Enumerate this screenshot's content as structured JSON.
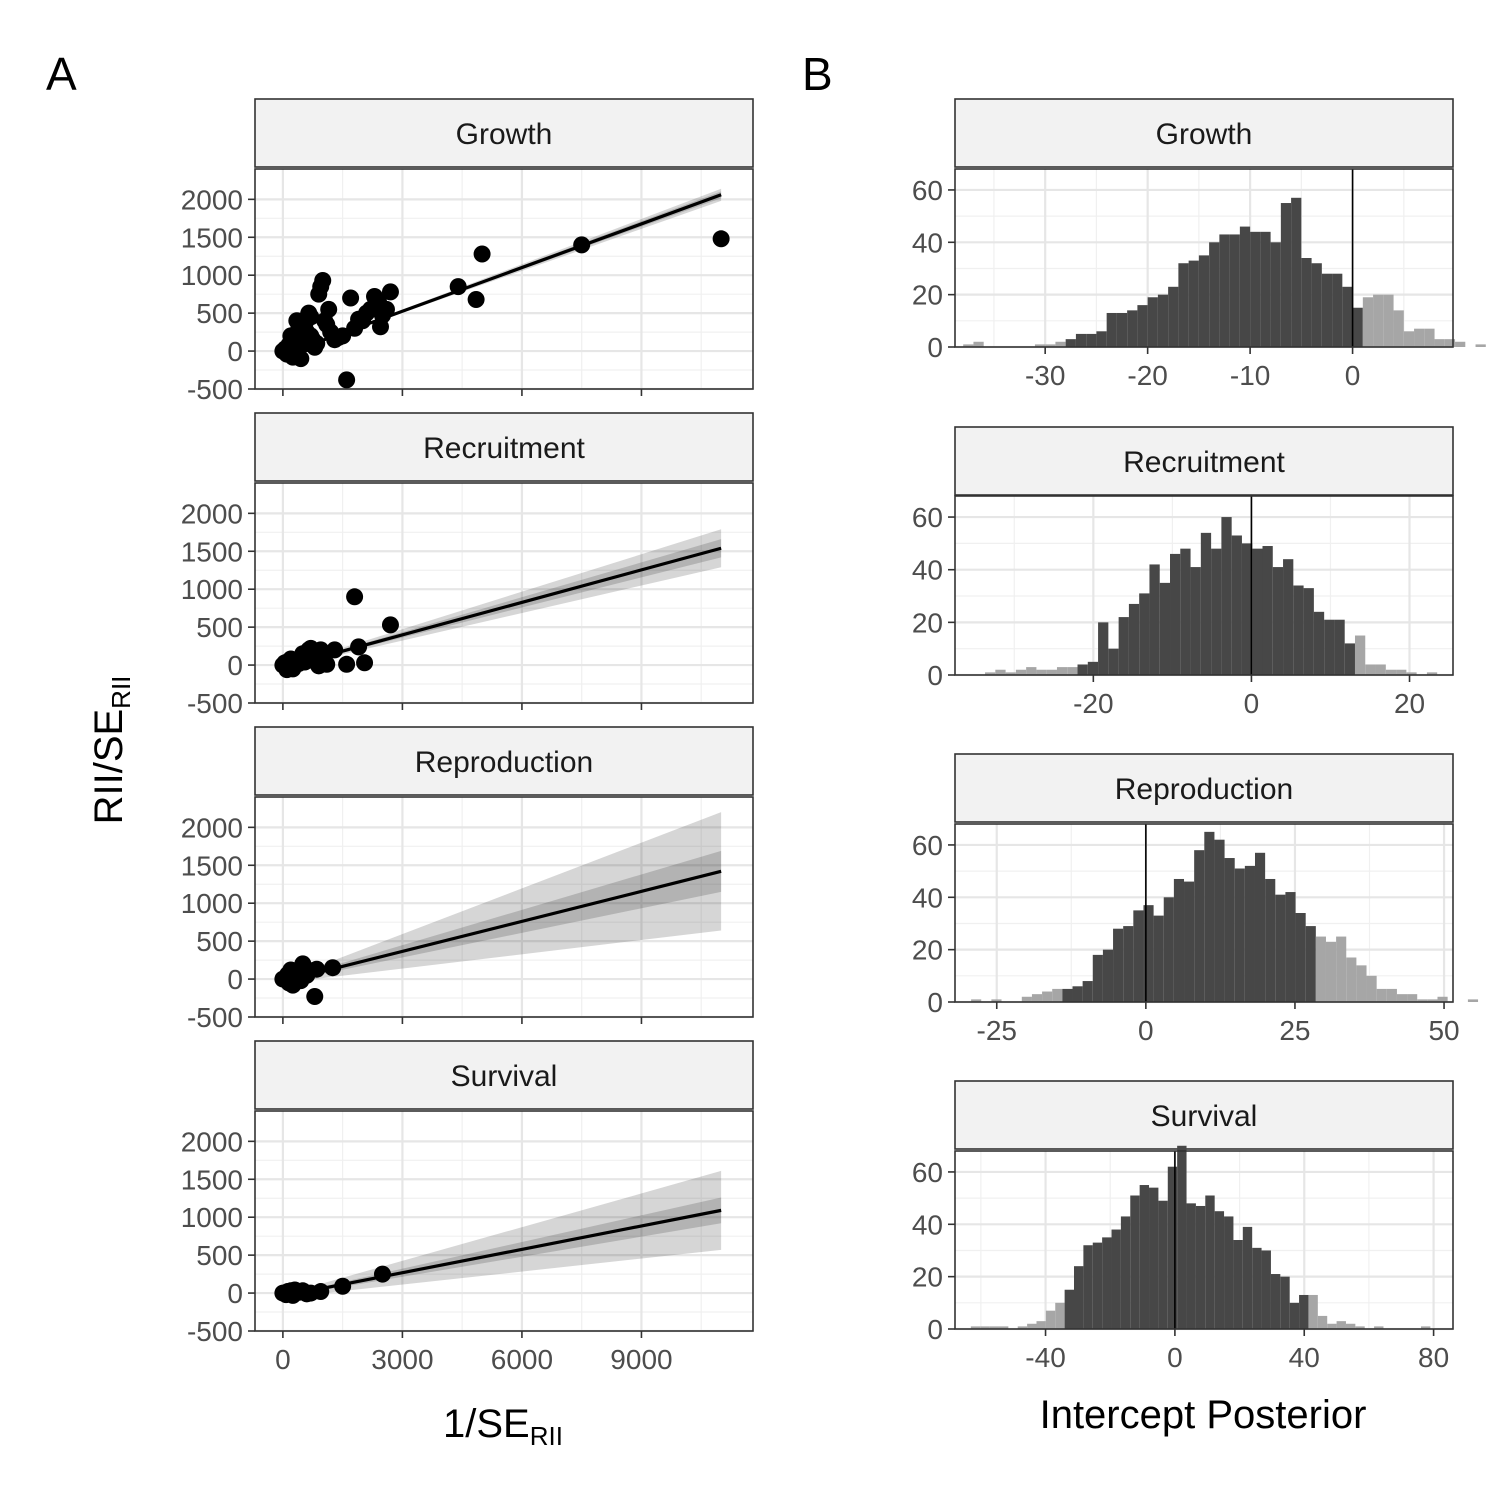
{
  "panels": {
    "a": "A",
    "b": "B"
  },
  "chart_data": [
    {
      "type": "scatter",
      "panel": "A",
      "xlabel": "1/SE",
      "xlabel_sub": "RII",
      "ylabel": "RII/SE",
      "ylabel_sub": "RII",
      "xlim": [
        -700,
        11800
      ],
      "ylim": [
        -500,
        2400
      ],
      "xticks": [
        0,
        3000,
        6000,
        9000
      ],
      "xtick_labels": [
        "0",
        "3000",
        "6000",
        "9000"
      ],
      "yticks": [
        -500,
        0,
        500,
        1000,
        1500,
        2000
      ],
      "ytick_labels": [
        "-500",
        "0",
        "500",
        "1000",
        "1500",
        "2000"
      ],
      "grid": true,
      "facets": [
        {
          "strip": "Growth",
          "fit": {
            "x0": 0,
            "x1": 11000,
            "y0": -50,
            "y1": 2060,
            "inner": [
              0,
              45
            ],
            "outer": [
              0,
              80
            ]
          },
          "points": [
            [
              0,
              0
            ],
            [
              60,
              30
            ],
            [
              100,
              -40
            ],
            [
              150,
              80
            ],
            [
              200,
              120
            ],
            [
              250,
              -80
            ],
            [
              300,
              200
            ],
            [
              350,
              150
            ],
            [
              400,
              300
            ],
            [
              450,
              100
            ],
            [
              500,
              400
            ],
            [
              550,
              350
            ],
            [
              600,
              250
            ],
            [
              650,
              500
            ],
            [
              700,
              200
            ],
            [
              750,
              150
            ],
            [
              800,
              50
            ],
            [
              850,
              100
            ],
            [
              900,
              750
            ],
            [
              950,
              850
            ],
            [
              1000,
              930
            ],
            [
              1050,
              400
            ],
            [
              1100,
              350
            ],
            [
              1150,
              550
            ],
            [
              1200,
              250
            ],
            [
              1300,
              150
            ],
            [
              1400,
              180
            ],
            [
              1500,
              200
            ],
            [
              1600,
              -380
            ],
            [
              1700,
              700
            ],
            [
              1800,
              300
            ],
            [
              1900,
              420
            ],
            [
              2000,
              400
            ],
            [
              2100,
              500
            ],
            [
              2200,
              550
            ],
            [
              2300,
              720
            ],
            [
              2400,
              650
            ],
            [
              2450,
              320
            ],
            [
              2500,
              470
            ],
            [
              2600,
              550
            ],
            [
              2700,
              780
            ],
            [
              4400,
              850
            ],
            [
              4850,
              680
            ],
            [
              5000,
              1280
            ],
            [
              7500,
              1400
            ],
            [
              11000,
              1480
            ],
            [
              200,
              200
            ],
            [
              350,
              400
            ],
            [
              300,
              -50
            ],
            [
              450,
              -100
            ],
            [
              600,
              100
            ],
            [
              700,
              450
            ]
          ]
        },
        {
          "strip": "Recruitment",
          "fit": {
            "x0": 0,
            "x1": 11000,
            "y0": -30,
            "y1": 1540,
            "inner": [
              5,
              120
            ],
            "outer": [
              10,
              250
            ]
          },
          "points": [
            [
              0,
              0
            ],
            [
              50,
              30
            ],
            [
              100,
              -60
            ],
            [
              150,
              50
            ],
            [
              200,
              80
            ],
            [
              300,
              10
            ],
            [
              400,
              20
            ],
            [
              500,
              150
            ],
            [
              600,
              100
            ],
            [
              650,
              200
            ],
            [
              700,
              220
            ],
            [
              800,
              50
            ],
            [
              900,
              -10
            ],
            [
              950,
              200
            ],
            [
              1000,
              150
            ],
            [
              1100,
              10
            ],
            [
              1300,
              200
            ],
            [
              1600,
              10
            ],
            [
              1800,
              900
            ],
            [
              1900,
              240
            ],
            [
              2050,
              30
            ],
            [
              2700,
              530
            ],
            [
              250,
              -50
            ],
            [
              550,
              40
            ]
          ]
        },
        {
          "strip": "Reproduction",
          "fit": {
            "x0": 0,
            "x1": 11000,
            "y0": -30,
            "y1": 1420,
            "inner": [
              10,
              270
            ],
            "outer": [
              20,
              780
            ]
          },
          "points": [
            [
              0,
              0
            ],
            [
              80,
              20
            ],
            [
              150,
              -50
            ],
            [
              200,
              120
            ],
            [
              250,
              -80
            ],
            [
              300,
              50
            ],
            [
              350,
              80
            ],
            [
              400,
              30
            ],
            [
              450,
              -20
            ],
            [
              500,
              200
            ],
            [
              550,
              150
            ],
            [
              600,
              50
            ],
            [
              800,
              -230
            ],
            [
              850,
              130
            ],
            [
              1250,
              150
            ],
            [
              120,
              60
            ],
            [
              220,
              0
            ]
          ]
        },
        {
          "strip": "Survival",
          "fit": {
            "x0": 0,
            "x1": 11000,
            "y0": -40,
            "y1": 1090,
            "inner": [
              10,
              170
            ],
            "outer": [
              20,
              520
            ]
          },
          "points": [
            [
              0,
              0
            ],
            [
              80,
              -20
            ],
            [
              120,
              20
            ],
            [
              150,
              -10
            ],
            [
              200,
              30
            ],
            [
              300,
              40
            ],
            [
              400,
              10
            ],
            [
              500,
              30
            ],
            [
              600,
              -10
            ],
            [
              700,
              0
            ],
            [
              950,
              20
            ],
            [
              1500,
              90
            ],
            [
              2500,
              250
            ],
            [
              250,
              -30
            ],
            [
              450,
              20
            ]
          ]
        }
      ]
    },
    {
      "type": "bar",
      "panel": "B",
      "subtype": "histogram",
      "xlabel": "Intercept Posterior",
      "ylim": [
        0,
        68
      ],
      "yticks": [
        0,
        20,
        40,
        60
      ],
      "ytick_labels": [
        "0",
        "20",
        "40",
        "60"
      ],
      "grid": true,
      "facets": [
        {
          "strip": "Growth",
          "xlim": [
            -38.8,
            9.8
          ],
          "xticks": [
            -30,
            -20,
            -10,
            0
          ],
          "xtick_labels": [
            "-30",
            "-20",
            "-10",
            "0"
          ],
          "bin_start": -38,
          "bin_width": 1,
          "dark_range": [
            -27.5,
            1.0
          ],
          "vline": 0,
          "counts": [
            1,
            2,
            0,
            0,
            0,
            0,
            0,
            1,
            1,
            2,
            3,
            5,
            5,
            6,
            13,
            13,
            14,
            16,
            19,
            20,
            23,
            32,
            33,
            35,
            40,
            43,
            43,
            46,
            44,
            44,
            40,
            55,
            57,
            34,
            32,
            28,
            28,
            23,
            15,
            19,
            20,
            20,
            14,
            6,
            7,
            7,
            3,
            3,
            2,
            0,
            1,
            0,
            0
          ]
        },
        {
          "strip": "Recruitment",
          "xlim": [
            -37.5,
            25.5
          ],
          "xticks": [
            -20,
            0,
            20
          ],
          "xtick_labels": [
            "-20",
            "0",
            "20"
          ],
          "bin_start": -35,
          "bin_width": 1.3,
          "dark_range": [
            -22,
            13.5
          ],
          "vline": 0,
          "counts": [
            0,
            1,
            2,
            1,
            2,
            3,
            2,
            2,
            3,
            3,
            4,
            5,
            20,
            10,
            22,
            27,
            31,
            42,
            35,
            46,
            48,
            41,
            54,
            48,
            60,
            53,
            50,
            48,
            49,
            41,
            44,
            34,
            33,
            24,
            21,
            21,
            12,
            15,
            4,
            4,
            2,
            2,
            1,
            0,
            1,
            0,
            0
          ]
        },
        {
          "strip": "Reproduction",
          "xlim": [
            -32,
            51.5
          ],
          "xticks": [
            -25,
            0,
            25,
            50
          ],
          "xtick_labels": [
            "-25",
            "0",
            "25",
            "50"
          ],
          "bin_start": -31,
          "bin_width": 1.7,
          "dark_range": [
            -14,
            29
          ],
          "vline": 0,
          "counts": [
            0,
            1,
            0,
            1,
            0,
            0,
            2,
            3,
            4,
            5,
            5,
            6,
            8,
            18,
            20,
            28,
            29,
            35,
            37,
            33,
            40,
            47,
            46,
            58,
            65,
            62,
            55,
            51,
            52,
            57,
            47,
            41,
            42,
            34,
            29,
            25,
            23,
            25,
            17,
            14,
            10,
            5,
            5,
            3,
            3,
            1,
            1,
            2,
            0,
            0,
            1,
            0
          ]
        },
        {
          "strip": "Survival",
          "xlim": [
            -68,
            86
          ],
          "xticks": [
            -40,
            0,
            40,
            80
          ],
          "xtick_labels": [
            "-40",
            "0",
            "40",
            "80"
          ],
          "bin_start": -66,
          "bin_width": 2.9,
          "dark_range": [
            -35,
            42
          ],
          "vline": 0,
          "counts": [
            0,
            1,
            1,
            1,
            1,
            0,
            1,
            2,
            3,
            7,
            10,
            15,
            24,
            32,
            33,
            35,
            38,
            43,
            51,
            55,
            54,
            49,
            62,
            70,
            48,
            47,
            51,
            45,
            43,
            34,
            39,
            31,
            30,
            21,
            20,
            10,
            13,
            13,
            5,
            2,
            3,
            2,
            1,
            0,
            1,
            0,
            0,
            0,
            0,
            1,
            0,
            0
          ]
        }
      ]
    }
  ]
}
